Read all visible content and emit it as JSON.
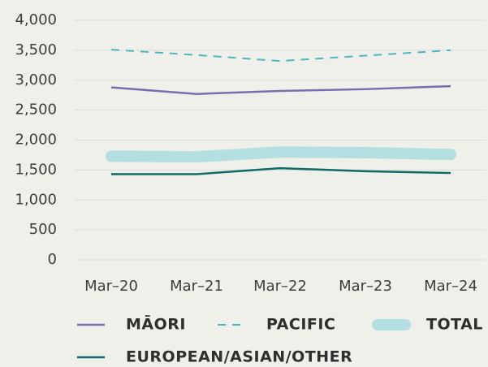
{
  "chart_data": {
    "type": "line",
    "categories": [
      "Mar–20",
      "Mar–21",
      "Mar–22",
      "Mar–23",
      "Mar–24"
    ],
    "series": [
      {
        "name": "MĀORI",
        "color": "#7a6db0",
        "linestyle": "solid",
        "linewidth": 2.5,
        "values": [
          2880,
          2770,
          2820,
          2850,
          2900
        ]
      },
      {
        "name": "PACIFIC",
        "color": "#4cb6bf",
        "linestyle": "dashed",
        "linewidth": 2,
        "values": [
          3510,
          3420,
          3320,
          3410,
          3500
        ]
      },
      {
        "name": "TOTAL",
        "color": "#b3dfe0",
        "linestyle": "solid",
        "linewidth": 14,
        "values": [
          1730,
          1720,
          1800,
          1790,
          1760
        ]
      },
      {
        "name": "EUROPEAN/ASIAN/OTHER",
        "color": "#0f6a6a",
        "linestyle": "solid",
        "linewidth": 2.5,
        "values": [
          1430,
          1430,
          1530,
          1480,
          1450
        ]
      }
    ],
    "ylim": [
      0,
      4000
    ],
    "yticks": [
      0,
      500,
      {
        "value": 1000,
        "label": "1,000"
      },
      {
        "value": 1500,
        "label": "1,500"
      },
      {
        "value": 2000,
        "label": "2,000"
      },
      {
        "value": 2500,
        "label": "2,500"
      },
      {
        "value": 3000,
        "label": "3,000"
      },
      {
        "value": 3500,
        "label": "3,500"
      },
      {
        "value": 4000,
        "label": "4,000"
      }
    ],
    "grid": true,
    "legend": "bottom"
  }
}
